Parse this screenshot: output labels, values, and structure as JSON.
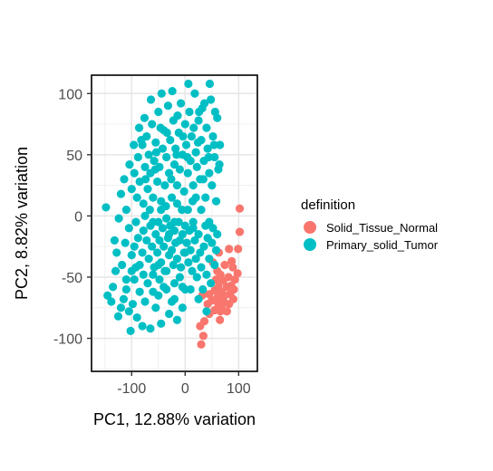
{
  "chart_data": {
    "type": "scatter",
    "xlabel": "PC1, 12.88% variation",
    "ylabel": "PC2, 8.82% variation",
    "xlim": [
      -175,
      135
    ],
    "ylim": [
      -127,
      115
    ],
    "x_ticks": [
      -100,
      0,
      100
    ],
    "x_tick_labels": [
      "-100",
      "0",
      "100"
    ],
    "y_ticks": [
      -100,
      -50,
      0,
      50,
      100
    ],
    "y_tick_labels": [
      "-100",
      "-50",
      "0",
      "50",
      "100"
    ],
    "grid": true,
    "legend": {
      "title": "definition",
      "placement": "right"
    },
    "series": [
      {
        "name": "Solid_Tissue_Normal",
        "color": "#F8766D",
        "points": [
          [
            102,
            6
          ],
          [
            102,
            -13
          ],
          [
            99,
            -27
          ],
          [
            82,
            -27
          ],
          [
            63,
            -30
          ],
          [
            87,
            -37
          ],
          [
            52,
            -38
          ],
          [
            74,
            -40
          ],
          [
            89,
            -42
          ],
          [
            60,
            -45
          ],
          [
            98,
            -47
          ],
          [
            66,
            -48
          ],
          [
            81,
            -50
          ],
          [
            93,
            -52
          ],
          [
            58,
            -52
          ],
          [
            71,
            -53
          ],
          [
            86,
            -57
          ],
          [
            62,
            -58
          ],
          [
            78,
            -58
          ],
          [
            91,
            -60
          ],
          [
            55,
            -61
          ],
          [
            68,
            -62
          ],
          [
            45,
            -64
          ],
          [
            84,
            -64
          ],
          [
            74,
            -65
          ],
          [
            32,
            -65
          ],
          [
            60,
            -67
          ],
          [
            90,
            -68
          ],
          [
            50,
            -69
          ],
          [
            72,
            -70
          ],
          [
            82,
            -72
          ],
          [
            62,
            -72
          ],
          [
            42,
            -72
          ],
          [
            68,
            -75
          ],
          [
            55,
            -77
          ],
          [
            78,
            -78
          ],
          [
            66,
            -78
          ],
          [
            45,
            -80
          ],
          [
            36,
            -86
          ],
          [
            65,
            -85
          ],
          [
            28,
            -90
          ],
          [
            34,
            -98
          ],
          [
            30,
            -105
          ]
        ]
      },
      {
        "name": "Primary_solid_Tumor",
        "color": "#00BFC4",
        "points": [
          [
            -145,
            -65
          ],
          [
            -138,
            -70
          ],
          [
            -135,
            -58
          ],
          [
            -125,
            -82
          ],
          [
            -120,
            -75
          ],
          [
            -115,
            -68
          ],
          [
            -110,
            -60
          ],
          [
            -105,
            -78
          ],
          [
            -102,
            -94
          ],
          [
            -98,
            -72
          ],
          [
            -95,
            -52
          ],
          [
            -90,
            -83
          ],
          [
            -85,
            -62
          ],
          [
            -80,
            -90
          ],
          [
            -75,
            -70
          ],
          [
            -70,
            -55
          ],
          [
            -65,
            -92
          ],
          [
            -60,
            -48
          ],
          [
            -55,
            -75
          ],
          [
            -50,
            -65
          ],
          [
            -45,
            -88
          ],
          [
            -40,
            -58
          ],
          [
            -35,
            -45
          ],
          [
            -30,
            -80
          ],
          [
            -25,
            -70
          ],
          [
            -20,
            -55
          ],
          [
            -15,
            -85
          ],
          [
            -10,
            -50
          ],
          [
            -5,
            -75
          ],
          [
            0,
            -60
          ],
          [
            -148,
            7
          ],
          [
            -128,
            -30
          ],
          [
            -130,
            -45
          ],
          [
            -118,
            -40
          ],
          [
            -112,
            -22
          ],
          [
            -105,
            -10
          ],
          [
            -100,
            -32
          ],
          [
            -95,
            -25
          ],
          [
            -92,
            -5
          ],
          [
            -88,
            -18
          ],
          [
            -85,
            -40
          ],
          [
            -80,
            -30
          ],
          [
            -78,
            -12
          ],
          [
            -75,
            0
          ],
          [
            -72,
            -20
          ],
          [
            -68,
            -35
          ],
          [
            -65,
            -8
          ],
          [
            -62,
            -25
          ],
          [
            -58,
            -42
          ],
          [
            -55,
            -15
          ],
          [
            -52,
            -30
          ],
          [
            -50,
            -5
          ],
          [
            -48,
            -20
          ],
          [
            -45,
            -38
          ],
          [
            -42,
            -10
          ],
          [
            -40,
            -25
          ],
          [
            -38,
            -45
          ],
          [
            -35,
            -2
          ],
          [
            -32,
            -18
          ],
          [
            -30,
            -32
          ],
          [
            -28,
            -8
          ],
          [
            -25,
            -28
          ],
          [
            -22,
            -40
          ],
          [
            -20,
            -12
          ],
          [
            -18,
            -22
          ],
          [
            -15,
            -35
          ],
          [
            -12,
            -5
          ],
          [
            -10,
            -20
          ],
          [
            -8,
            -42
          ],
          [
            -5,
            -15
          ],
          [
            -2,
            -30
          ],
          [
            0,
            -8
          ],
          [
            3,
            -22
          ],
          [
            6,
            -38
          ],
          [
            8,
            -12
          ],
          [
            10,
            -28
          ],
          [
            13,
            -45
          ],
          [
            15,
            -5
          ],
          [
            18,
            -20
          ],
          [
            20,
            -35
          ],
          [
            22,
            -50
          ],
          [
            25,
            -15
          ],
          [
            28,
            -30
          ],
          [
            30,
            -42
          ],
          [
            33,
            -60
          ],
          [
            35,
            -25
          ],
          [
            38,
            -8
          ],
          [
            40,
            -48
          ],
          [
            42,
            -18
          ],
          [
            45,
            -35
          ],
          [
            48,
            -55
          ],
          [
            50,
            -22
          ],
          [
            52,
            -10
          ],
          [
            55,
            -40
          ],
          [
            58,
            -28
          ],
          [
            60,
            -15
          ],
          [
            -110,
            -52
          ],
          [
            -100,
            -45
          ],
          [
            -92,
            -42
          ],
          [
            -78,
            -48
          ],
          [
            -60,
            -62
          ],
          [
            -48,
            -52
          ],
          [
            -35,
            -60
          ],
          [
            -20,
            -68
          ],
          [
            -5,
            -58
          ],
          [
            10,
            -60
          ],
          [
            25,
            -68
          ],
          [
            40,
            -78
          ],
          [
            -120,
            18
          ],
          [
            -110,
            5
          ],
          [
            -100,
            22
          ],
          [
            -95,
            35
          ],
          [
            -90,
            15
          ],
          [
            -88,
            48
          ],
          [
            -85,
            28
          ],
          [
            -80,
            58
          ],
          [
            -78,
            10
          ],
          [
            -75,
            40
          ],
          [
            -72,
            65
          ],
          [
            -70,
            22
          ],
          [
            -68,
            50
          ],
          [
            -65,
            35
          ],
          [
            -62,
            75
          ],
          [
            -60,
            15
          ],
          [
            -58,
            45
          ],
          [
            -55,
            60
          ],
          [
            -52,
            28
          ],
          [
            -50,
            85
          ],
          [
            -48,
            40
          ],
          [
            -45,
            12
          ],
          [
            -42,
            55
          ],
          [
            -40,
            70
          ],
          [
            -38,
            25
          ],
          [
            -35,
            48
          ],
          [
            -32,
            90
          ],
          [
            -30,
            35
          ],
          [
            -28,
            62
          ],
          [
            -25,
            15
          ],
          [
            -22,
            78
          ],
          [
            -20,
            42
          ],
          [
            -18,
            55
          ],
          [
            -15,
            25
          ],
          [
            -12,
            68
          ],
          [
            -10,
            38
          ],
          [
            -8,
            92
          ],
          [
            -5,
            50
          ],
          [
            -2,
            20
          ],
          [
            0,
            75
          ],
          [
            2,
            58
          ],
          [
            5,
            35
          ],
          [
            8,
            85
          ],
          [
            10,
            45
          ],
          [
            12,
            65
          ],
          [
            15,
            25
          ],
          [
            18,
            100
          ],
          [
            20,
            52
          ],
          [
            22,
            40
          ],
          [
            25,
            78
          ],
          [
            28,
            30
          ],
          [
            30,
            62
          ],
          [
            32,
            88
          ],
          [
            35,
            45
          ],
          [
            38,
            15
          ],
          [
            40,
            72
          ],
          [
            42,
            55
          ],
          [
            45,
            35
          ],
          [
            48,
            95
          ],
          [
            50,
            25
          ],
          [
            52,
            65
          ],
          [
            55,
            48
          ],
          [
            58,
            12
          ],
          [
            60,
            80
          ],
          [
            62,
            38
          ],
          [
            65,
            58
          ],
          [
            -82,
            62
          ],
          [
            -74,
            30
          ],
          [
            -66,
            5
          ],
          [
            -56,
            38
          ],
          [
            -46,
            72
          ],
          [
            -36,
            8
          ],
          [
            -26,
            30
          ],
          [
            -16,
            50
          ],
          [
            -6,
            5
          ],
          [
            4,
            48
          ],
          [
            14,
            12
          ],
          [
            24,
            60
          ],
          [
            34,
            30
          ],
          [
            44,
            48
          ],
          [
            54,
            58
          ],
          [
            64,
            42
          ],
          [
            -44,
            100
          ],
          [
            -24,
            102
          ],
          [
            6,
            108
          ],
          [
            26,
            85
          ],
          [
            46,
            108
          ],
          [
            56,
            85
          ],
          [
            36,
            92
          ],
          [
            16,
            72
          ],
          [
            -4,
            65
          ],
          [
            -14,
            82
          ],
          [
            -34,
            68
          ],
          [
            -54,
            52
          ],
          [
            -64,
            95
          ],
          [
            -76,
            80
          ],
          [
            -86,
            72
          ],
          [
            -96,
            58
          ],
          [
            -104,
            42
          ],
          [
            -114,
            30
          ],
          [
            -124,
            -2
          ],
          [
            -132,
            -20
          ],
          [
            -60,
            -5
          ],
          [
            -45,
            5
          ],
          [
            -30,
            -15
          ],
          [
            -15,
            10
          ],
          [
            0,
            -30
          ],
          [
            15,
            -10
          ],
          [
            30,
            5
          ],
          [
            45,
            -5
          ],
          [
            20,
            15
          ],
          [
            -20,
            -5
          ],
          [
            5,
            5
          ],
          [
            -50,
            -40
          ]
        ]
      }
    ]
  }
}
